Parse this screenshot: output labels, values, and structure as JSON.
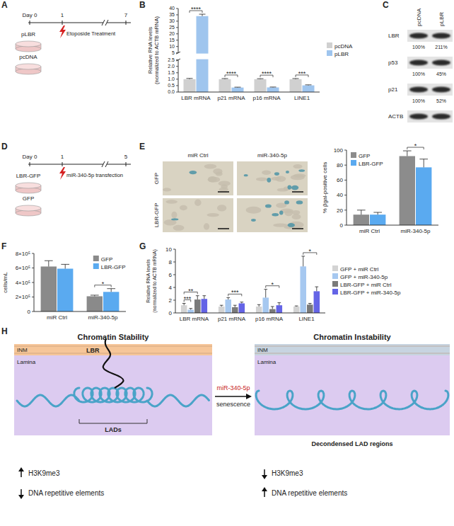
{
  "panel_letters": [
    "A",
    "B",
    "C",
    "D",
    "E",
    "F",
    "G",
    "H"
  ],
  "timeline_a": {
    "days": [
      "Day 0",
      "1",
      "7"
    ],
    "treatment": "Etoposide Treatment",
    "dishes": [
      "pLBR",
      "pcDNA"
    ]
  },
  "blot_c": {
    "lanes": [
      "pcDNA",
      "pLBR"
    ],
    "rows": [
      {
        "protein": "LBR",
        "quant": [
          "100%",
          "211%"
        ]
      },
      {
        "protein": "p53",
        "quant": [
          "100%",
          "45%"
        ]
      },
      {
        "protein": "p21",
        "quant": [
          "100%",
          "52%"
        ]
      },
      {
        "protein": "ACTB"
      }
    ]
  },
  "timeline_d": {
    "days": [
      "Day 0",
      "1",
      "5"
    ],
    "treatment": "miR-340-5p transfection",
    "dishes": [
      "LBR-GFP",
      "GFP"
    ]
  },
  "micrographs_e": {
    "columns": [
      "miR Ctrl",
      "miR-340-5p"
    ],
    "rows": [
      "GFP",
      "LBR-GFP"
    ]
  },
  "diagram_h": {
    "left_title": "Chromatin Stability",
    "right_title": "Chromatin Instability",
    "membrane": "INM",
    "lamina": "Lamina",
    "receptor": "LBR",
    "domains": "LADs",
    "decondensed": "Decondensed LAD regions",
    "arrow_top": "miR-340-5p",
    "arrow_bottom": "senescence",
    "left_effects": [
      {
        "direction": "up",
        "text": "H3K9me3"
      },
      {
        "direction": "down",
        "text": "DNA repetitive elements"
      }
    ],
    "right_effects": [
      {
        "direction": "down",
        "text": "H3K9me3"
      },
      {
        "direction": "up",
        "text": "DNA repetitive elements"
      }
    ]
  },
  "chart_data": [
    {
      "type": "bar",
      "y_label": [
        "Relative RNA levels",
        "(normalized to ACTB mRNA)"
      ],
      "categories": [
        "LBR mRNA",
        "p21 mRNA",
        "p16 mRNA",
        "LINE1"
      ],
      "series": [
        {
          "name": "pcDNA",
          "color": "#d0d0d0",
          "values": [
            1,
            1,
            1,
            1
          ],
          "errors": [
            0.06,
            0.05,
            0.04,
            0.05
          ]
        },
        {
          "name": "pLBR",
          "color": "#9fc5ee",
          "values": [
            34,
            0.35,
            0.36,
            0.52
          ],
          "errors": [
            1.5,
            0.03,
            0.03,
            0.04
          ]
        }
      ],
      "ylim": [
        0,
        40
      ],
      "ybreak": [
        2.5,
        5
      ],
      "yticks": [
        {
          "value": 0,
          "label": "0.0"
        },
        0.5,
        {
          "value": 1,
          "label": "1.0"
        },
        1.5,
        {
          "value": 2,
          "label": "2.0"
        },
        2.5,
        5,
        10,
        15,
        20,
        25,
        30,
        35,
        40
      ],
      "legend": "right",
      "annotations": [
        {
          "category": "LBR mRNA",
          "between": [
            "pcDNA",
            "pLBR"
          ],
          "text": "****"
        },
        {
          "category": "p21 mRNA",
          "between": [
            "pcDNA",
            "pLBR"
          ],
          "text": "****"
        },
        {
          "category": "p16 mRNA",
          "between": [
            "pcDNA",
            "pLBR"
          ],
          "text": "****"
        },
        {
          "category": "LINE1",
          "between": [
            "pcDNA",
            "pLBR"
          ],
          "text": "***"
        }
      ]
    },
    {
      "type": "bar",
      "y_label": [
        "% βgal-positive cells"
      ],
      "categories": [
        "miR Ctrl",
        "miR-340-5p"
      ],
      "series": [
        {
          "name": "GFP",
          "color": "#8c8c8c",
          "values": [
            14,
            92
          ],
          "errors": [
            6,
            7
          ]
        },
        {
          "name": "LBR-GFP",
          "color": "#5aaaf0",
          "values": [
            14,
            77
          ],
          "errors": [
            3,
            11
          ]
        }
      ],
      "ylim": [
        0,
        100
      ],
      "yticks": [
        0,
        20,
        40,
        60,
        80,
        100
      ],
      "legend": "upper left",
      "annotations": [
        {
          "category": "miR-340-5p",
          "between": [
            "GFP",
            "LBR-GFP"
          ],
          "text": "*"
        }
      ]
    },
    {
      "type": "bar",
      "y_label": [
        "cells/mL"
      ],
      "categories": [
        "miR Ctrl",
        "miR-340-5p"
      ],
      "series": [
        {
          "name": "GFP",
          "color": "#8a8a8a",
          "values": [
            620000,
            210000
          ],
          "errors": [
            80000,
            15000
          ]
        },
        {
          "name": "LBR-GFP",
          "color": "#5aaaf0",
          "values": [
            590000,
            270000
          ],
          "errors": [
            60000,
            45000
          ]
        }
      ],
      "ylim": [
        0,
        800000
      ],
      "yticks": [
        0,
        {
          "value": 200000,
          "label": "2×10⁵"
        },
        {
          "value": 400000,
          "label": "4×10⁵"
        },
        {
          "value": 600000,
          "label": "6×10⁵"
        },
        {
          "value": 800000,
          "label": "8×10⁵"
        }
      ],
      "legend": "upper right",
      "annotations": [
        {
          "category": "miR-340-5p",
          "between": [
            "GFP",
            "LBR-GFP"
          ],
          "text": "*"
        }
      ]
    },
    {
      "type": "bar",
      "y_label": [
        "Relative RNA levels",
        "(normalized to ACTB mRNA)"
      ],
      "categories": [
        "LBR mRNA",
        "p21 mRNA",
        "p16 mRNA",
        "LINE1"
      ],
      "series": [
        {
          "name": "GFP + miR Ctrl",
          "color": "#d3d3d3",
          "values": [
            1.2,
            1,
            1,
            1
          ],
          "errors": [
            0.3,
            0.2,
            0.3,
            0.1
          ]
        },
        {
          "name": "GFP + miR-340-5p",
          "color": "#a6c8f0",
          "values": [
            0.5,
            2.1,
            2.4,
            7.3
          ],
          "errors": [
            0.2,
            0.3,
            1.3,
            1.6
          ]
        },
        {
          "name": "LBR-GFP + miR Ctrl",
          "color": "#7a7a7a",
          "values": [
            2.1,
            0.9,
            0.6,
            1.3
          ],
          "errors": [
            0.6,
            0.3,
            0.4,
            0.2
          ]
        },
        {
          "name": "LBR-GFP + miR-340-5p",
          "color": "#6464e6",
          "values": [
            2.2,
            1.5,
            1.2,
            3.4
          ],
          "errors": [
            0.5,
            0.2,
            0.4,
            0.7
          ]
        }
      ],
      "ylim": [
        0,
        10
      ],
      "yticks": [
        0,
        2,
        4,
        6,
        8,
        10
      ],
      "legend": "right",
      "annotations": [
        {
          "category": "LBR mRNA",
          "between": [
            "GFP + miR Ctrl",
            "GFP + miR-340-5p"
          ],
          "text": "***"
        },
        {
          "category": "LBR mRNA",
          "between": [
            "GFP + miR Ctrl",
            "LBR-GFP + miR Ctrl"
          ],
          "text": "**"
        },
        {
          "category": "p21 mRNA",
          "between": [
            "GFP + miR-340-5p",
            "LBR-GFP + miR-340-5p"
          ],
          "text": "***"
        },
        {
          "category": "p16 mRNA",
          "between": [
            "GFP + miR-340-5p",
            "LBR-GFP + miR-340-5p"
          ],
          "text": "*"
        },
        {
          "category": "LINE1",
          "between": [
            "GFP + miR-340-5p",
            "LBR-GFP + miR-340-5p"
          ],
          "text": "*"
        }
      ]
    }
  ]
}
